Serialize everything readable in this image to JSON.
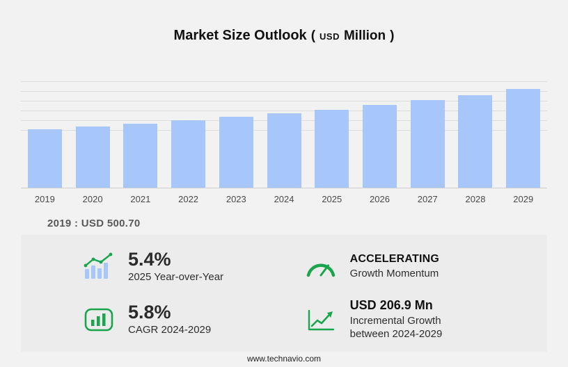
{
  "title": {
    "main": "Market Size Outlook",
    "paren_open": "(",
    "currency": "USD",
    "unit": "Million",
    "paren_close": ")"
  },
  "chart_data": {
    "type": "bar",
    "title": "Market Size Outlook (USD Million)",
    "categories": [
      "2019",
      "2020",
      "2021",
      "2022",
      "2023",
      "2024",
      "2025",
      "2026",
      "2027",
      "2028",
      "2029"
    ],
    "values": [
      500.7,
      524.9,
      550.3,
      577.0,
      605.0,
      635.0,
      669.3,
      707.0,
      748.0,
      792.9,
      841.9
    ],
    "xlabel": "",
    "ylabel": "USD Million",
    "ylim": [
      0,
      940
    ],
    "grid": true,
    "legend": "none",
    "bar_color": "#a7c6f9",
    "base_year_note": "2019 : USD 500.70"
  },
  "stats": {
    "yoy": {
      "icon": "bar-growth-icon",
      "value": "5.4%",
      "label": "2025 Year-over-Year"
    },
    "momentum": {
      "icon": "gauge-icon",
      "value": "ACCELERATING",
      "label": "Growth Momentum"
    },
    "cagr": {
      "icon": "chart-box-icon",
      "value": "5.8%",
      "label": "CAGR 2024-2029"
    },
    "incremental": {
      "icon": "trend-arrow-icon",
      "value": "USD 206.9 Mn",
      "label": "Incremental Growth\nbetween 2024-2029"
    }
  },
  "footer": {
    "website": "www.technavio.com"
  },
  "colors": {
    "bar": "#a7c6f9",
    "accent_green": "#18a54b",
    "panel_bg": "#ececec",
    "page_bg": "#f2f2f2"
  }
}
